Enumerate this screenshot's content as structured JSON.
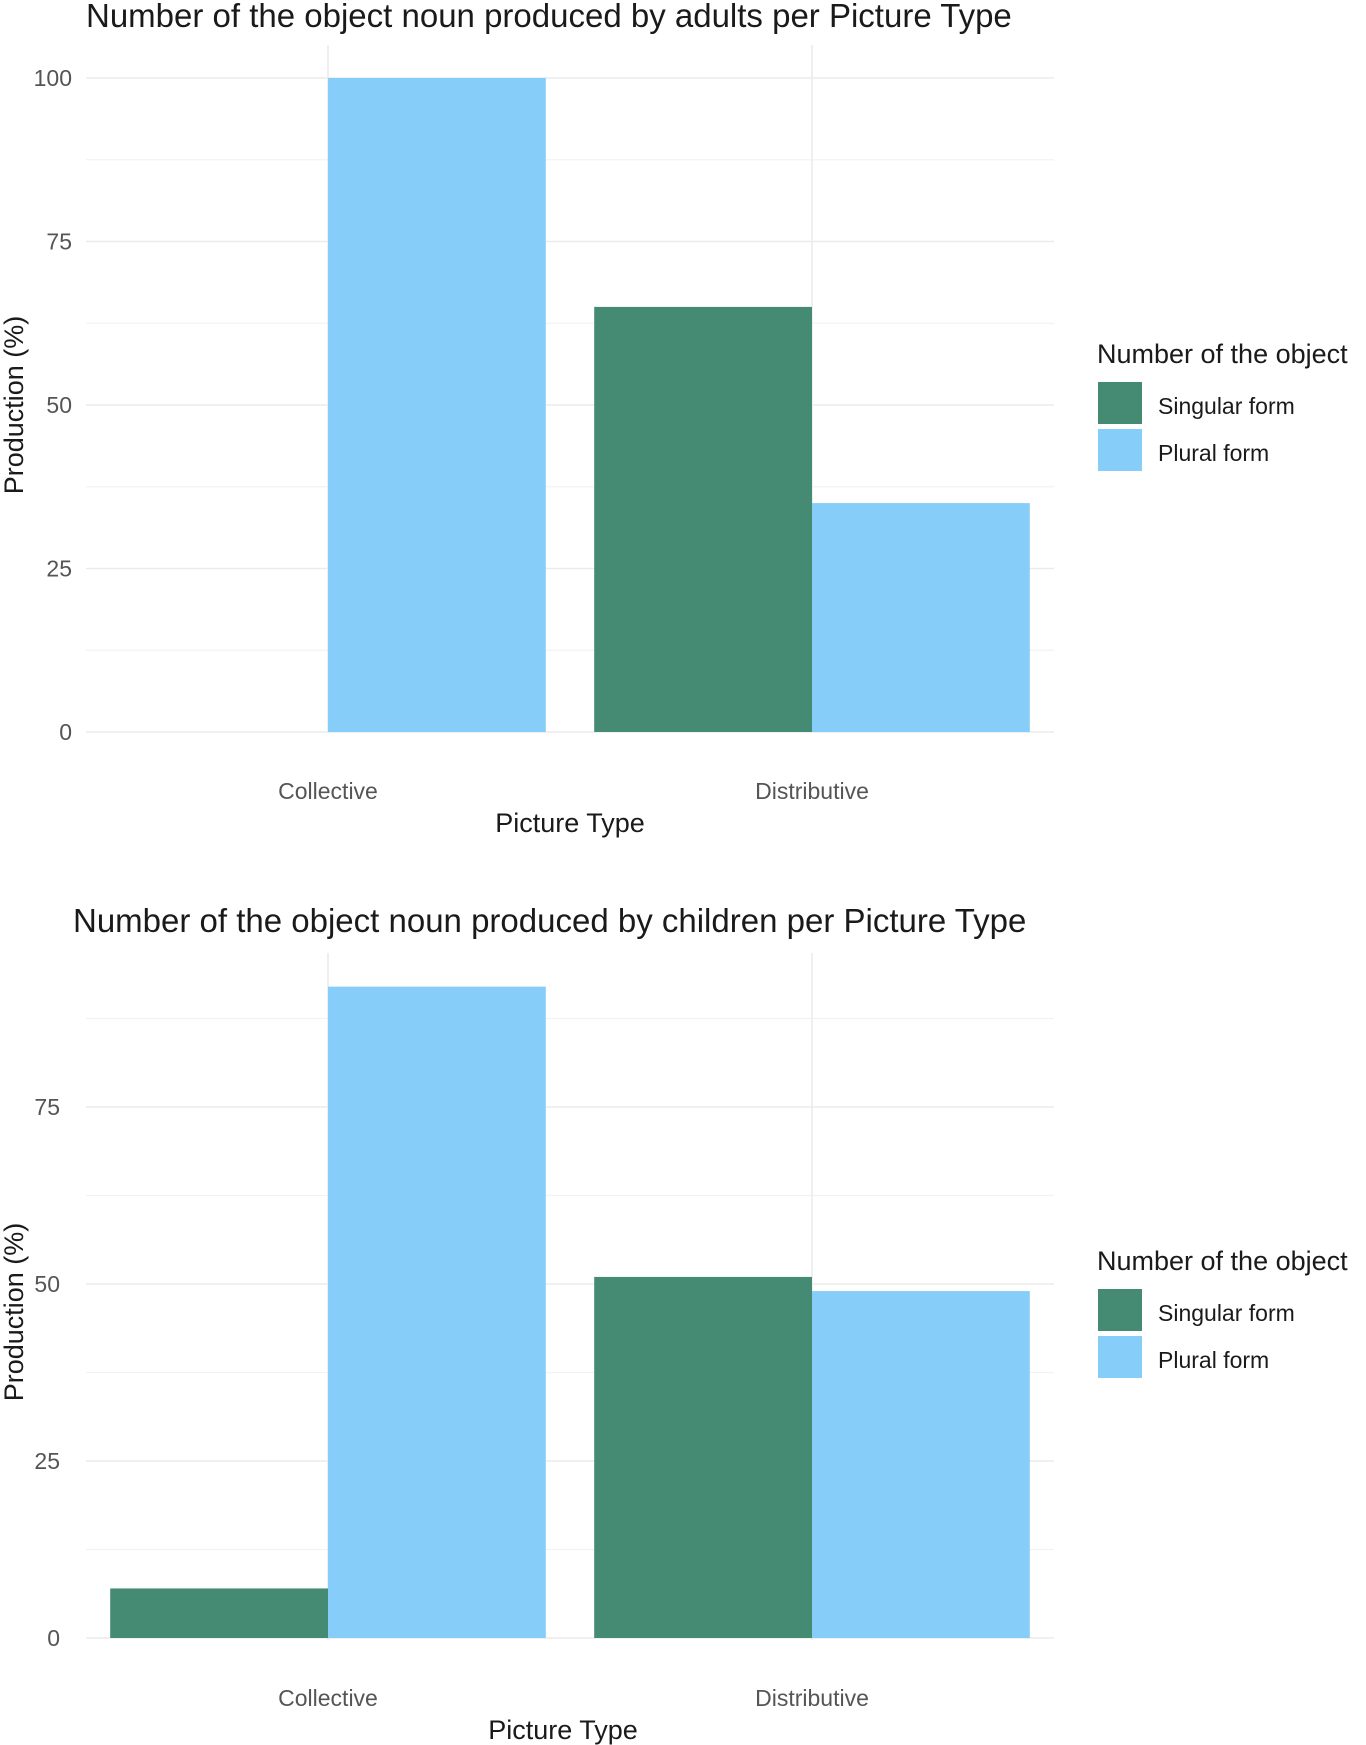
{
  "colors": {
    "singular": "#458b73",
    "plural": "#87cdf9"
  },
  "chart_data": [
    {
      "type": "bar",
      "title": "Number of the object noun produced by adults per Picture Type",
      "xlabel": "Picture Type",
      "ylabel": "Production (%)",
      "categories": [
        "Collective",
        "Distributive"
      ],
      "ylim": [
        0,
        100
      ],
      "yticks": [
        0,
        25,
        50,
        75,
        100
      ],
      "legend_title": "Number of the object",
      "legend_position": "right",
      "grid": true,
      "series": [
        {
          "name": "Singular form",
          "values": [
            0,
            65
          ]
        },
        {
          "name": "Plural form",
          "values": [
            100,
            35
          ]
        }
      ]
    },
    {
      "type": "bar",
      "title": "Number of the object noun produced by children per Picture Type",
      "xlabel": "Picture Type",
      "ylabel": "Production (%)",
      "categories": [
        "Collective",
        "Distributive"
      ],
      "ylim": [
        0,
        92
      ],
      "yticks": [
        0,
        25,
        50,
        75
      ],
      "legend_title": "Number of the object",
      "legend_position": "right",
      "grid": true,
      "series": [
        {
          "name": "Singular form",
          "values": [
            7,
            51
          ]
        },
        {
          "name": "Plural form",
          "values": [
            92,
            49
          ]
        }
      ]
    }
  ]
}
